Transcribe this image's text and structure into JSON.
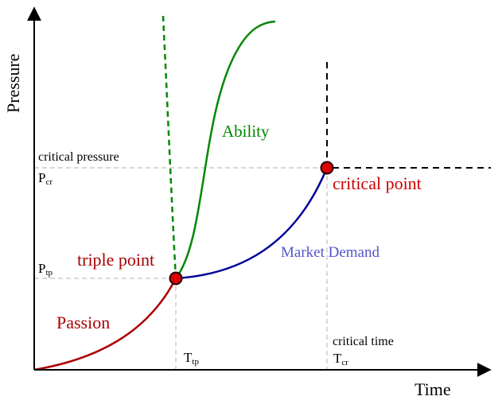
{
  "axes": {
    "y_label": "Pressure",
    "x_label": "Time"
  },
  "ticks": {
    "p_cr": {
      "base": "P",
      "sub": "cr"
    },
    "p_tp": {
      "base": "P",
      "sub": "tp"
    },
    "t_tp": {
      "base": "T",
      "sub": "tp"
    },
    "t_cr": {
      "base": "T",
      "sub": "cr"
    }
  },
  "annotations": {
    "critical_pressure": "critical pressure",
    "critical_time": "critical time"
  },
  "regions": {
    "passion": "Passion",
    "ability": "Ability",
    "market_demand": "Market Demand"
  },
  "points": {
    "triple_point": "triple point",
    "critical_point": "critical point"
  },
  "colors": {
    "passion": "#aa0000",
    "ability": "#008800",
    "market_demand": "#000099",
    "market_demand_label": "#5555cc",
    "point_fill": "#dd0000",
    "point_label": "#cc0000",
    "triple_label": "#aa0000",
    "guide": "#cccccc",
    "axis": "#000000"
  }
}
